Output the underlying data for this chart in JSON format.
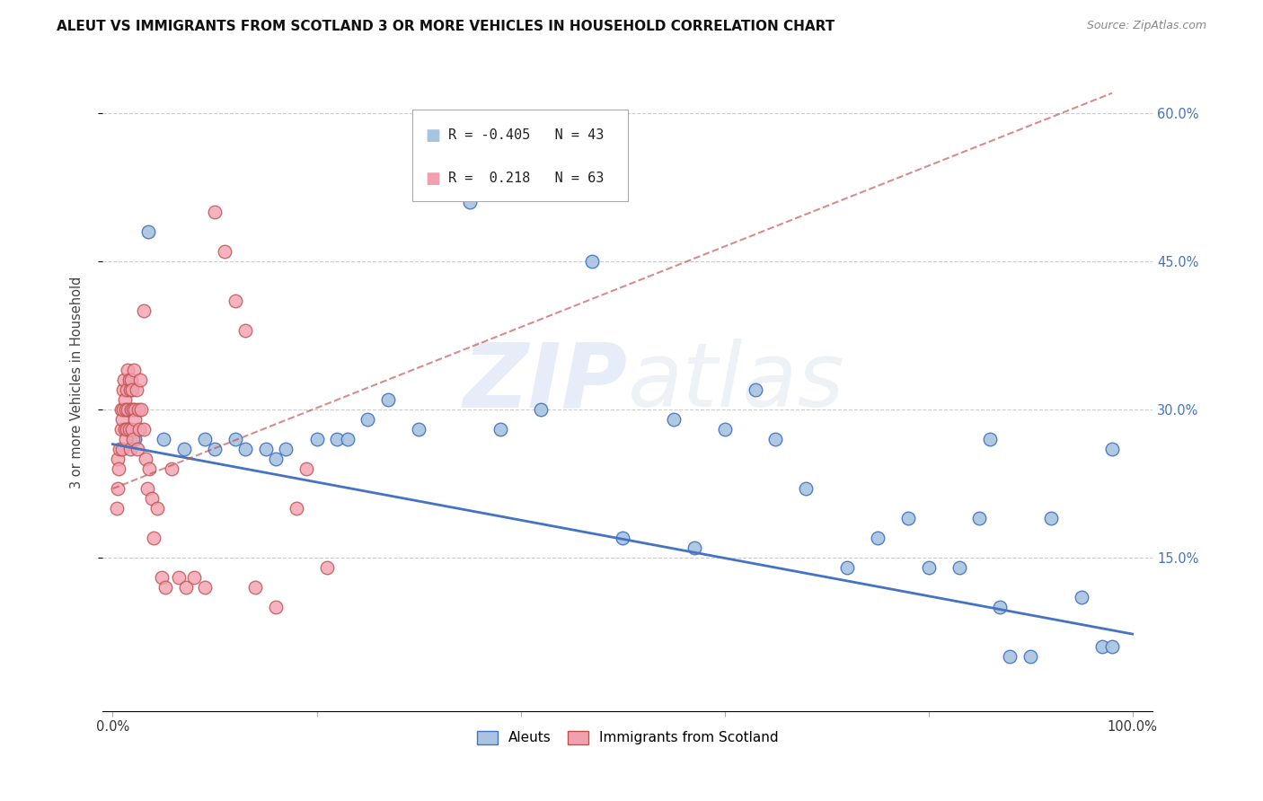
{
  "title": "ALEUT VS IMMIGRANTS FROM SCOTLAND 3 OR MORE VEHICLES IN HOUSEHOLD CORRELATION CHART",
  "source": "Source: ZipAtlas.com",
  "ylabel": "3 or more Vehicles in Household",
  "legend_label_1": "Aleuts",
  "legend_label_2": "Immigrants from Scotland",
  "r1": -0.405,
  "n1": 43,
  "r2": 0.218,
  "n2": 63,
  "color_blue": "#a8c4e0",
  "color_pink": "#f2a0b0",
  "color_blue_line": "#4472c4",
  "color_pink_line": "#c0504d",
  "watermark_color": "#dce8f5",
  "xlim": [
    0.0,
    1.0
  ],
  "ylim": [
    0.0,
    0.66
  ],
  "xtick_positions": [
    0.0,
    1.0
  ],
  "xtick_labels": [
    "0.0%",
    "100.0%"
  ],
  "ytick_positions": [
    0.15,
    0.3,
    0.45,
    0.6
  ],
  "ytick_labels": [
    "15.0%",
    "30.0%",
    "45.0%",
    "60.0%"
  ],
  "blue_x": [
    0.022,
    0.035,
    0.05,
    0.07,
    0.09,
    0.1,
    0.12,
    0.13,
    0.15,
    0.16,
    0.17,
    0.2,
    0.22,
    0.23,
    0.25,
    0.27,
    0.3,
    0.35,
    0.38,
    0.42,
    0.47,
    0.5,
    0.55,
    0.57,
    0.6,
    0.63,
    0.65,
    0.68,
    0.72,
    0.75,
    0.78,
    0.8,
    0.83,
    0.85,
    0.87,
    0.88,
    0.9,
    0.92,
    0.95,
    0.97,
    0.98,
    0.98,
    0.86
  ],
  "blue_y": [
    0.27,
    0.48,
    0.27,
    0.26,
    0.27,
    0.26,
    0.27,
    0.26,
    0.26,
    0.25,
    0.26,
    0.27,
    0.27,
    0.27,
    0.29,
    0.31,
    0.28,
    0.51,
    0.28,
    0.3,
    0.45,
    0.17,
    0.29,
    0.16,
    0.28,
    0.32,
    0.27,
    0.22,
    0.14,
    0.17,
    0.19,
    0.14,
    0.14,
    0.19,
    0.1,
    0.05,
    0.05,
    0.19,
    0.11,
    0.06,
    0.06,
    0.26,
    0.27
  ],
  "pink_x": [
    0.004,
    0.005,
    0.005,
    0.006,
    0.007,
    0.008,
    0.008,
    0.009,
    0.009,
    0.01,
    0.01,
    0.011,
    0.012,
    0.012,
    0.013,
    0.013,
    0.014,
    0.014,
    0.015,
    0.015,
    0.016,
    0.016,
    0.017,
    0.017,
    0.018,
    0.018,
    0.019,
    0.019,
    0.02,
    0.02,
    0.021,
    0.022,
    0.022,
    0.023,
    0.024,
    0.025,
    0.026,
    0.027,
    0.028,
    0.03,
    0.032,
    0.034,
    0.036,
    0.038,
    0.04,
    0.044,
    0.048,
    0.052,
    0.058,
    0.065,
    0.072,
    0.08,
    0.09,
    0.1,
    0.11,
    0.12,
    0.13,
    0.14,
    0.16,
    0.18,
    0.19,
    0.21,
    0.03
  ],
  "pink_y": [
    0.2,
    0.22,
    0.25,
    0.24,
    0.26,
    0.28,
    0.3,
    0.26,
    0.29,
    0.32,
    0.3,
    0.33,
    0.28,
    0.31,
    0.27,
    0.3,
    0.32,
    0.28,
    0.34,
    0.3,
    0.33,
    0.28,
    0.32,
    0.26,
    0.3,
    0.33,
    0.28,
    0.32,
    0.3,
    0.27,
    0.34,
    0.3,
    0.29,
    0.32,
    0.26,
    0.3,
    0.28,
    0.33,
    0.3,
    0.28,
    0.25,
    0.22,
    0.24,
    0.21,
    0.17,
    0.2,
    0.13,
    0.12,
    0.24,
    0.13,
    0.12,
    0.13,
    0.12,
    0.5,
    0.46,
    0.41,
    0.38,
    0.12,
    0.1,
    0.2,
    0.24,
    0.14,
    0.4
  ],
  "blue_line_x0": 0.0,
  "blue_line_x1": 1.0,
  "blue_line_y0": 0.265,
  "blue_line_y1": 0.073,
  "pink_line_x0": 0.0,
  "pink_line_x1": 0.98,
  "pink_line_y0": 0.22,
  "pink_line_y1": 0.62
}
